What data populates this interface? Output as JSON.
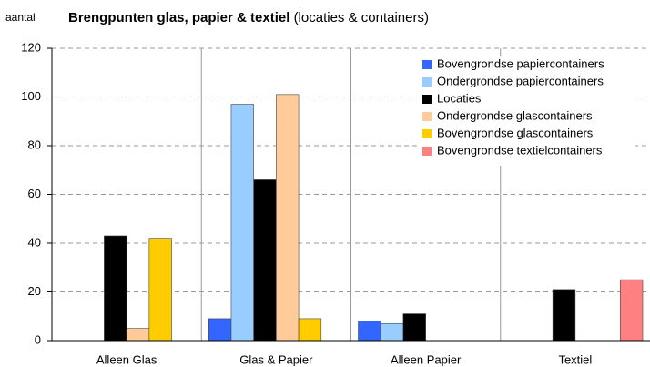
{
  "chart_data": {
    "type": "bar",
    "title": "Brengpunten glas, papier & textiel",
    "subtitle": "(locaties & containers)",
    "y_label": "aantal",
    "categories": [
      "Alleen Glas",
      "Glas & Papier",
      "Alleen Papier",
      "Textiel"
    ],
    "series": [
      {
        "name": "Bovengrondse papiercontainers",
        "color": "#3366ff",
        "values": [
          null,
          9,
          8,
          null
        ]
      },
      {
        "name": "Ondergrondse papiercontainers",
        "color": "#99ccff",
        "values": [
          null,
          97,
          7,
          null
        ]
      },
      {
        "name": "Locaties",
        "color": "#000000",
        "values": [
          43,
          66,
          11,
          21
        ]
      },
      {
        "name": "Ondergrondse glascontainers",
        "color": "#ffcc99",
        "values": [
          5,
          101,
          null,
          null
        ]
      },
      {
        "name": "Bovengrondse glascontainers",
        "color": "#ffcc00",
        "values": [
          42,
          9,
          null,
          null
        ]
      },
      {
        "name": "Bovengrondse textielcontainers",
        "color": "#ff8080",
        "values": [
          null,
          null,
          null,
          25
        ]
      }
    ],
    "ylim": [
      0,
      120
    ],
    "yticks": [
      0,
      20,
      40,
      60,
      80,
      100,
      120
    ],
    "grid": true,
    "legend": "top-right"
  }
}
